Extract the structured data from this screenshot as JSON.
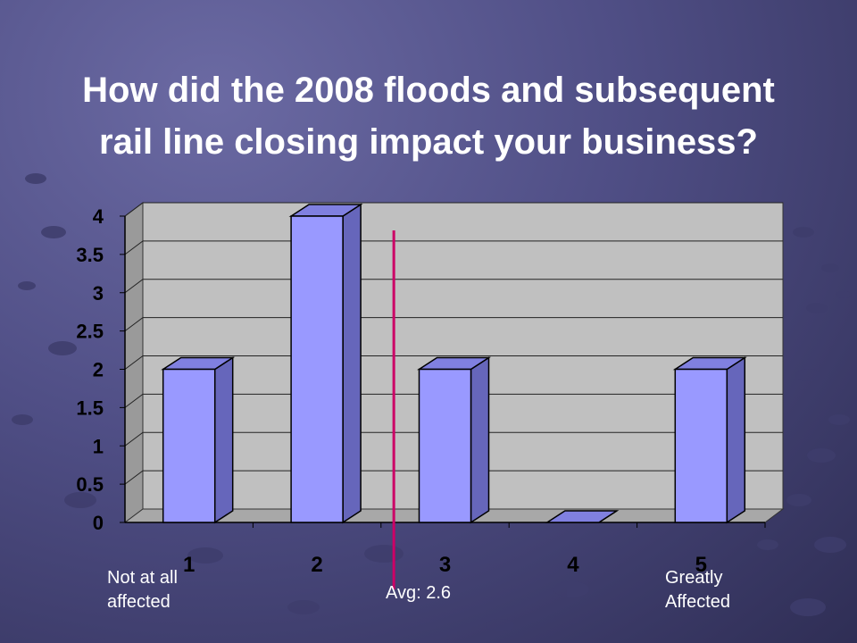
{
  "title_line1": "How did the 2008 floods and subsequent",
  "title_line2": "rail line closing impact your business?",
  "chart_data": {
    "type": "bar",
    "categories": [
      "1",
      "2",
      "3",
      "4",
      "5"
    ],
    "values": [
      2,
      4,
      2,
      0,
      2
    ],
    "ylim": [
      0,
      4
    ],
    "yticks": [
      "0",
      "0.5",
      "1",
      "1.5",
      "2",
      "2.5",
      "3",
      "3.5",
      "4"
    ],
    "grid": true,
    "bar_color": "#9999ff",
    "avg_line_color": "#cc0066",
    "avg_value": 2.6
  },
  "annotations": {
    "low_label": "Not at all affected",
    "high_label": "Greatly Affected",
    "avg_label": "Avg: 2.6"
  }
}
